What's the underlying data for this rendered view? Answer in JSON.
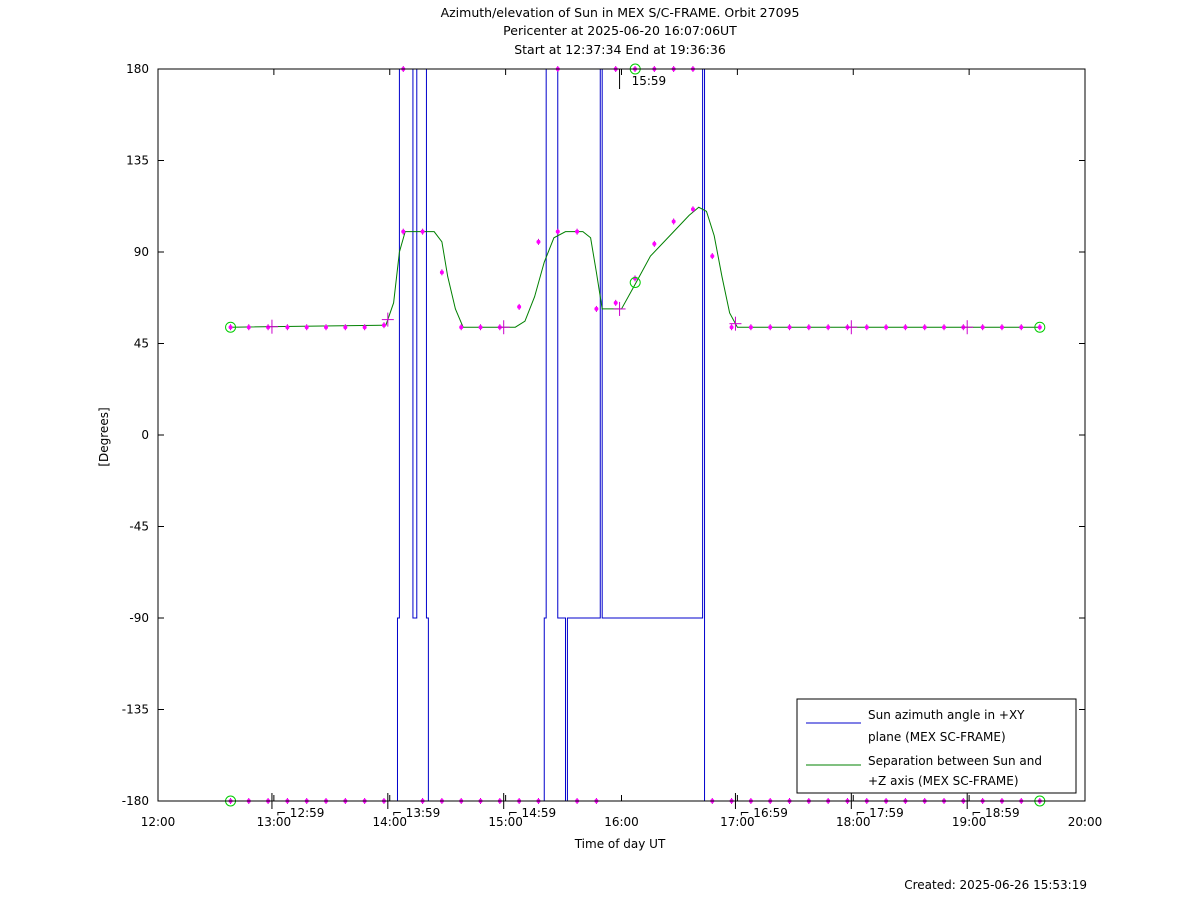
{
  "header": {
    "title_line1": "Azimuth/elevation of Sun in MEX S/C-FRAME.  Orbit 27095",
    "title_line2": "Pericenter at 2025-06-20 16:07:06UT",
    "title_line3": "Start at 12:37:34 End at 19:36:36"
  },
  "footer": {
    "created": "Created: 2025-06-26 15:53:19"
  },
  "chart_data": {
    "type": "line",
    "xlabel": "Time of day UT",
    "ylabel": "[Degrees]",
    "xlim": [
      "12:00",
      "20:00"
    ],
    "ylim": [
      -180,
      180
    ],
    "x_ticks": [
      "12:00",
      "13:00",
      "14:00",
      "15:00",
      "16:00",
      "17:00",
      "18:00",
      "19:00",
      "20:00"
    ],
    "y_ticks": [
      180,
      135,
      90,
      45,
      0,
      -45,
      -90,
      -135,
      -180
    ],
    "grid": false,
    "legend": {
      "position": "bottom-right",
      "entries": [
        {
          "line1": "Sun azimuth angle in +XY",
          "line2": "plane (MEX SC-FRAME)",
          "color": "#0000cc"
        },
        {
          "line1": "Separation between Sun and",
          "line2": "+Z axis (MEX SC-FRAME)",
          "color": "#008000"
        }
      ]
    },
    "time_markers": [
      {
        "time": "12:59",
        "label": "12:59",
        "level": -180
      },
      {
        "time": "13:59",
        "label": "13:59",
        "level": -180
      },
      {
        "time": "14:59",
        "label": "14:59",
        "level": -180
      },
      {
        "time": "15:59",
        "label": "15:59",
        "level": 180
      },
      {
        "time": "16:59",
        "label": "16:59",
        "level": -180
      },
      {
        "time": "17:59",
        "label": "17:59",
        "level": -180
      },
      {
        "time": "18:59",
        "label": "18:59",
        "level": -180
      }
    ],
    "series": [
      {
        "name": "Sun azimuth angle in +XY plane (MEX SC-FRAME)",
        "color": "#0000cc",
        "x": [
          "12:37:34",
          "14:04",
          "14:04",
          "14:05",
          "14:05",
          "14:12",
          "14:12",
          "14:14",
          "14:14",
          "14:19",
          "14:19",
          "14:20",
          "14:20",
          "15:20",
          "15:20",
          "15:21",
          "15:21",
          "15:27",
          "15:27",
          "15:31",
          "15:31",
          "15:32",
          "15:32",
          "15:49",
          "15:49",
          "15:50",
          "15:50",
          "16:42",
          "16:42",
          "16:43",
          "16:43",
          "19:36:36"
        ],
        "values": [
          -180,
          -180,
          -90,
          -90,
          180,
          180,
          -90,
          -90,
          180,
          180,
          -90,
          -90,
          -180,
          -180,
          -90,
          -90,
          180,
          180,
          -90,
          -90,
          -180,
          -180,
          -90,
          -90,
          180,
          180,
          -90,
          -90,
          180,
          180,
          -180,
          -180
        ]
      },
      {
        "name": "Separation between Sun and +Z axis (MEX SC-FRAME)",
        "color": "#008000",
        "x": [
          "12:37:34",
          "13:58",
          "14:02",
          "14:05",
          "14:08",
          "14:23",
          "14:27",
          "14:30",
          "14:34",
          "14:38",
          "14:45",
          "15:05",
          "15:10",
          "15:15",
          "15:20",
          "15:25",
          "15:31",
          "15:40",
          "15:44",
          "15:47",
          "15:50",
          "16:00",
          "16:07",
          "16:15",
          "16:25",
          "16:35",
          "16:40",
          "16:44",
          "16:48",
          "16:52",
          "16:56",
          "17:00",
          "19:36:36"
        ],
        "values": [
          53,
          54,
          65,
          90,
          100,
          100,
          95,
          78,
          62,
          53,
          53,
          53,
          56,
          68,
          85,
          97,
          100,
          100,
          97,
          80,
          62,
          62,
          74,
          88,
          98,
          108,
          112,
          110,
          98,
          78,
          60,
          53,
          53
        ]
      }
    ],
    "sample_markers": {
      "azimuth": {
        "x": [
          "12:37:34",
          "12:47",
          "12:57",
          "13:07",
          "13:17",
          "13:27",
          "13:37",
          "13:47",
          "13:57",
          "14:07",
          "14:17",
          "14:27",
          "14:37",
          "14:47",
          "14:57",
          "15:07",
          "15:17",
          "15:27",
          "15:37",
          "15:47",
          "15:57",
          "16:07",
          "16:17",
          "16:27",
          "16:37",
          "16:47",
          "16:57",
          "17:07",
          "17:17",
          "17:27",
          "17:37",
          "17:47",
          "17:57",
          "18:07",
          "18:17",
          "18:27",
          "18:37",
          "18:47",
          "18:57",
          "19:07",
          "19:17",
          "19:27",
          "19:36:36"
        ],
        "values": [
          -180,
          -180,
          -180,
          -180,
          -180,
          -180,
          -180,
          -180,
          -180,
          180,
          -180,
          -180,
          -180,
          -180,
          -180,
          -180,
          -180,
          180,
          -180,
          -180,
          180,
          180,
          180,
          180,
          180,
          -180,
          -180,
          -180,
          -180,
          -180,
          -180,
          -180,
          -180,
          -180,
          -180,
          -180,
          -180,
          -180,
          -180,
          -180,
          -180,
          -180,
          -180
        ]
      },
      "separation": {
        "x": [
          "12:37:34",
          "12:47",
          "12:57",
          "13:07",
          "13:17",
          "13:27",
          "13:37",
          "13:47",
          "13:57",
          "14:07",
          "14:17",
          "14:27",
          "14:37",
          "14:47",
          "14:57",
          "15:07",
          "15:17",
          "15:27",
          "15:37",
          "15:47",
          "15:57",
          "16:07",
          "16:17",
          "16:27",
          "16:37",
          "16:47",
          "16:57",
          "17:07",
          "17:17",
          "17:27",
          "17:37",
          "17:47",
          "17:57",
          "18:07",
          "18:17",
          "18:27",
          "18:37",
          "18:47",
          "18:57",
          "19:07",
          "19:17",
          "19:27",
          "19:36:36"
        ],
        "values": [
          53,
          53,
          53,
          53,
          53,
          53,
          53,
          53,
          54,
          100,
          100,
          80,
          53,
          53,
          53,
          63,
          95,
          100,
          100,
          62,
          65,
          77,
          94,
          105,
          111,
          88,
          53,
          53,
          53,
          53,
          53,
          53,
          53,
          53,
          53,
          53,
          53,
          53,
          53,
          53,
          53,
          53,
          53
        ]
      }
    },
    "special_points": [
      {
        "kind": "start",
        "time": "12:37:34",
        "values": [
          53,
          -180
        ]
      },
      {
        "kind": "pericenter",
        "time": "16:07:06",
        "values": [
          180,
          75
        ]
      },
      {
        "kind": "end",
        "time": "19:36:36",
        "values": [
          53,
          -180
        ]
      }
    ]
  }
}
